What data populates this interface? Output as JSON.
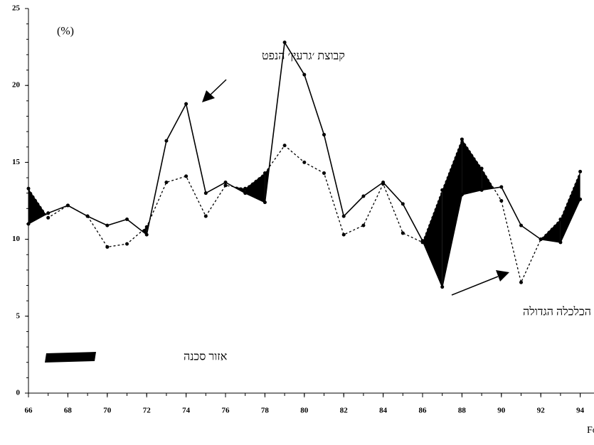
{
  "chart_data": {
    "type": "line",
    "unit_label": "(%)",
    "x": [
      66,
      67,
      68,
      69,
      70,
      71,
      72,
      73,
      74,
      75,
      76,
      77,
      78,
      79,
      80,
      81,
      82,
      83,
      84,
      85,
      86,
      87,
      88,
      89,
      90,
      91,
      92,
      93,
      94
    ],
    "series": [
      {
        "name": "קבוצת ׳גרעין׳ הנפט",
        "color": "#000000",
        "style": "solid",
        "values": [
          11.0,
          11.7,
          12.2,
          11.5,
          10.9,
          11.3,
          10.3,
          16.4,
          18.8,
          13.0,
          13.7,
          13.0,
          12.4,
          22.8,
          20.7,
          16.8,
          11.5,
          12.8,
          13.7,
          12.3,
          9.9,
          6.9,
          12.9,
          13.2,
          13.4,
          10.9,
          10.0,
          9.8,
          12.6
        ]
      },
      {
        "name": "הכלכלה הגדולה",
        "color": "#000000",
        "style": "dotted",
        "values": [
          13.3,
          11.4,
          12.2,
          11.5,
          9.5,
          9.7,
          10.8,
          13.7,
          14.1,
          11.5,
          13.5,
          13.3,
          14.3,
          16.1,
          15.0,
          14.3,
          10.3,
          10.9,
          13.6,
          10.4,
          9.8,
          13.2,
          16.5,
          14.6,
          12.5,
          7.2,
          10.0,
          11.3,
          14.4
        ]
      }
    ],
    "fill_label": "אזור סכנה",
    "fill_color": "#000000",
    "xlim": [
      66,
      94.7
    ],
    "xticks": [
      66,
      68,
      70,
      72,
      74,
      76,
      78,
      80,
      82,
      84,
      86,
      88,
      90,
      92,
      94
    ],
    "ylim": [
      0,
      25
    ],
    "yticks": [
      0,
      5,
      10,
      15,
      20,
      25
    ],
    "source": "מקור: Fortune; Standard & Poor's Compustat"
  }
}
